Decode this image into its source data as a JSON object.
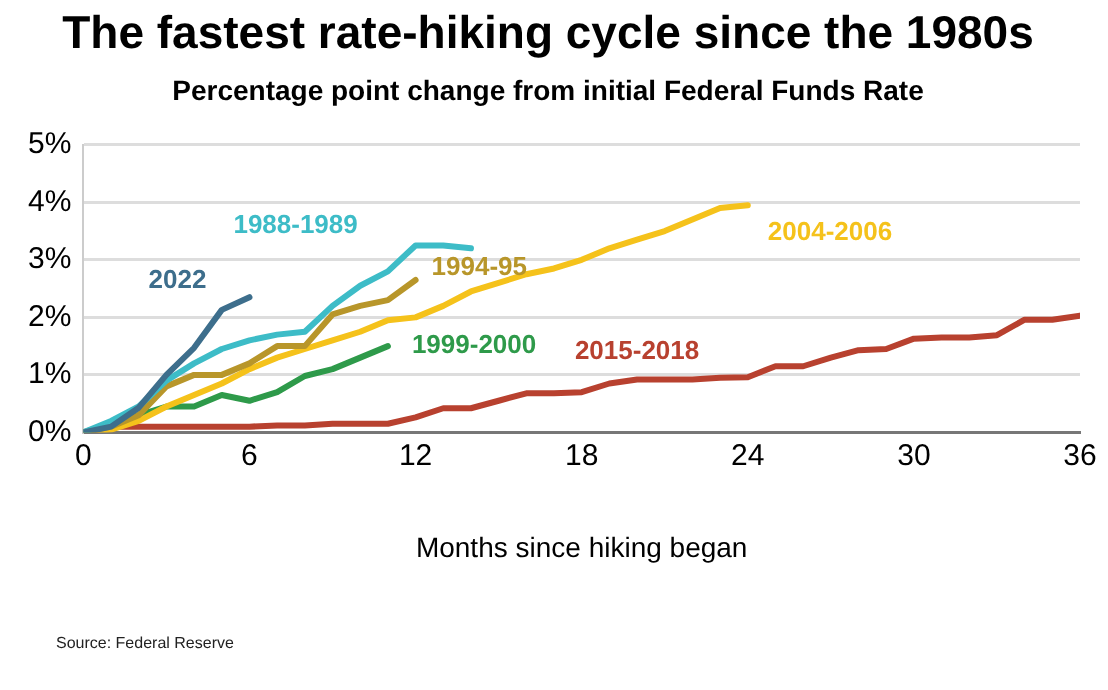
{
  "chart_data": {
    "type": "line",
    "title": "The fastest rate-hiking cycle since the 1980s",
    "subtitle": "Percentage point change from initial Federal Funds Rate",
    "xlabel": "Months since hiking began",
    "xlim": [
      0,
      36
    ],
    "xticks": [
      0,
      6,
      12,
      18,
      24,
      30,
      36
    ],
    "ylim": [
      0,
      5
    ],
    "yticks": [
      {
        "value": 0,
        "label": "0%"
      },
      {
        "value": 1,
        "label": "1%"
      },
      {
        "value": 2,
        "label": "2%"
      },
      {
        "value": 3,
        "label": "3%"
      },
      {
        "value": 4,
        "label": "4%"
      },
      {
        "value": 5,
        "label": "5%"
      }
    ],
    "grid": "y",
    "legend": false,
    "marker": "none",
    "line_style": "solid",
    "annotations": [
      "Source: Federal Reserve"
    ],
    "series": [
      {
        "name": "2022",
        "color": "#3d6e8c",
        "x": [
          0,
          1,
          2,
          3,
          4,
          5,
          6
        ],
        "values": [
          0,
          0.1,
          0.43,
          1.0,
          1.47,
          2.13,
          2.35
        ]
      },
      {
        "name": "1988-1989",
        "color": "#3dbcc7",
        "x": [
          0,
          1,
          2,
          3,
          4,
          5,
          6,
          7,
          8,
          9,
          10,
          11,
          12,
          13,
          14
        ],
        "values": [
          0,
          0.2,
          0.45,
          0.9,
          1.2,
          1.45,
          1.6,
          1.7,
          1.75,
          2.2,
          2.55,
          2.8,
          3.25,
          3.25,
          3.2
        ]
      },
      {
        "name": "1994-95",
        "color": "#b8962a",
        "x": [
          0,
          1,
          2,
          3,
          4,
          5,
          6,
          7,
          8,
          9,
          10,
          11,
          12
        ],
        "values": [
          0,
          0.1,
          0.3,
          0.8,
          1.0,
          1.0,
          1.2,
          1.5,
          1.5,
          2.05,
          2.2,
          2.3,
          2.65
        ]
      },
      {
        "name": "2004-2006",
        "color": "#f5c21b",
        "x": [
          0,
          1,
          2,
          3,
          4,
          5,
          6,
          7,
          8,
          9,
          10,
          11,
          12,
          13,
          14,
          15,
          16,
          17,
          18,
          19,
          20,
          21,
          22,
          23,
          24
        ],
        "values": [
          0,
          0.05,
          0.2,
          0.45,
          0.65,
          0.85,
          1.1,
          1.3,
          1.45,
          1.6,
          1.75,
          1.95,
          2.0,
          2.2,
          2.45,
          2.6,
          2.75,
          2.85,
          3.0,
          3.2,
          3.35,
          3.5,
          3.7,
          3.9,
          3.95
        ]
      },
      {
        "name": "1999-2000",
        "color": "#2e9a4a",
        "x": [
          0,
          1,
          2,
          3,
          4,
          5,
          6,
          7,
          8,
          9,
          10,
          11
        ],
        "values": [
          0,
          0.15,
          0.3,
          0.45,
          0.45,
          0.65,
          0.55,
          0.7,
          0.98,
          1.1,
          1.3,
          1.5
        ]
      },
      {
        "name": "2015-2018",
        "color": "#b8412f",
        "x": [
          0,
          1,
          2,
          3,
          4,
          5,
          6,
          7,
          8,
          9,
          10,
          11,
          12,
          13,
          14,
          15,
          16,
          17,
          18,
          19,
          20,
          21,
          22,
          23,
          24,
          25,
          26,
          27,
          28,
          29,
          30,
          31,
          32,
          33,
          34,
          35,
          36
        ],
        "values": [
          0,
          0.1,
          0.1,
          0.1,
          0.1,
          0.1,
          0.1,
          0.12,
          0.12,
          0.15,
          0.15,
          0.15,
          0.26,
          0.42,
          0.42,
          0.55,
          0.68,
          0.68,
          0.7,
          0.85,
          0.92,
          0.92,
          0.92,
          0.95,
          0.96,
          1.15,
          1.15,
          1.3,
          1.43,
          1.45,
          1.63,
          1.65,
          1.65,
          1.69,
          1.96,
          1.96,
          2.03
        ]
      }
    ]
  }
}
